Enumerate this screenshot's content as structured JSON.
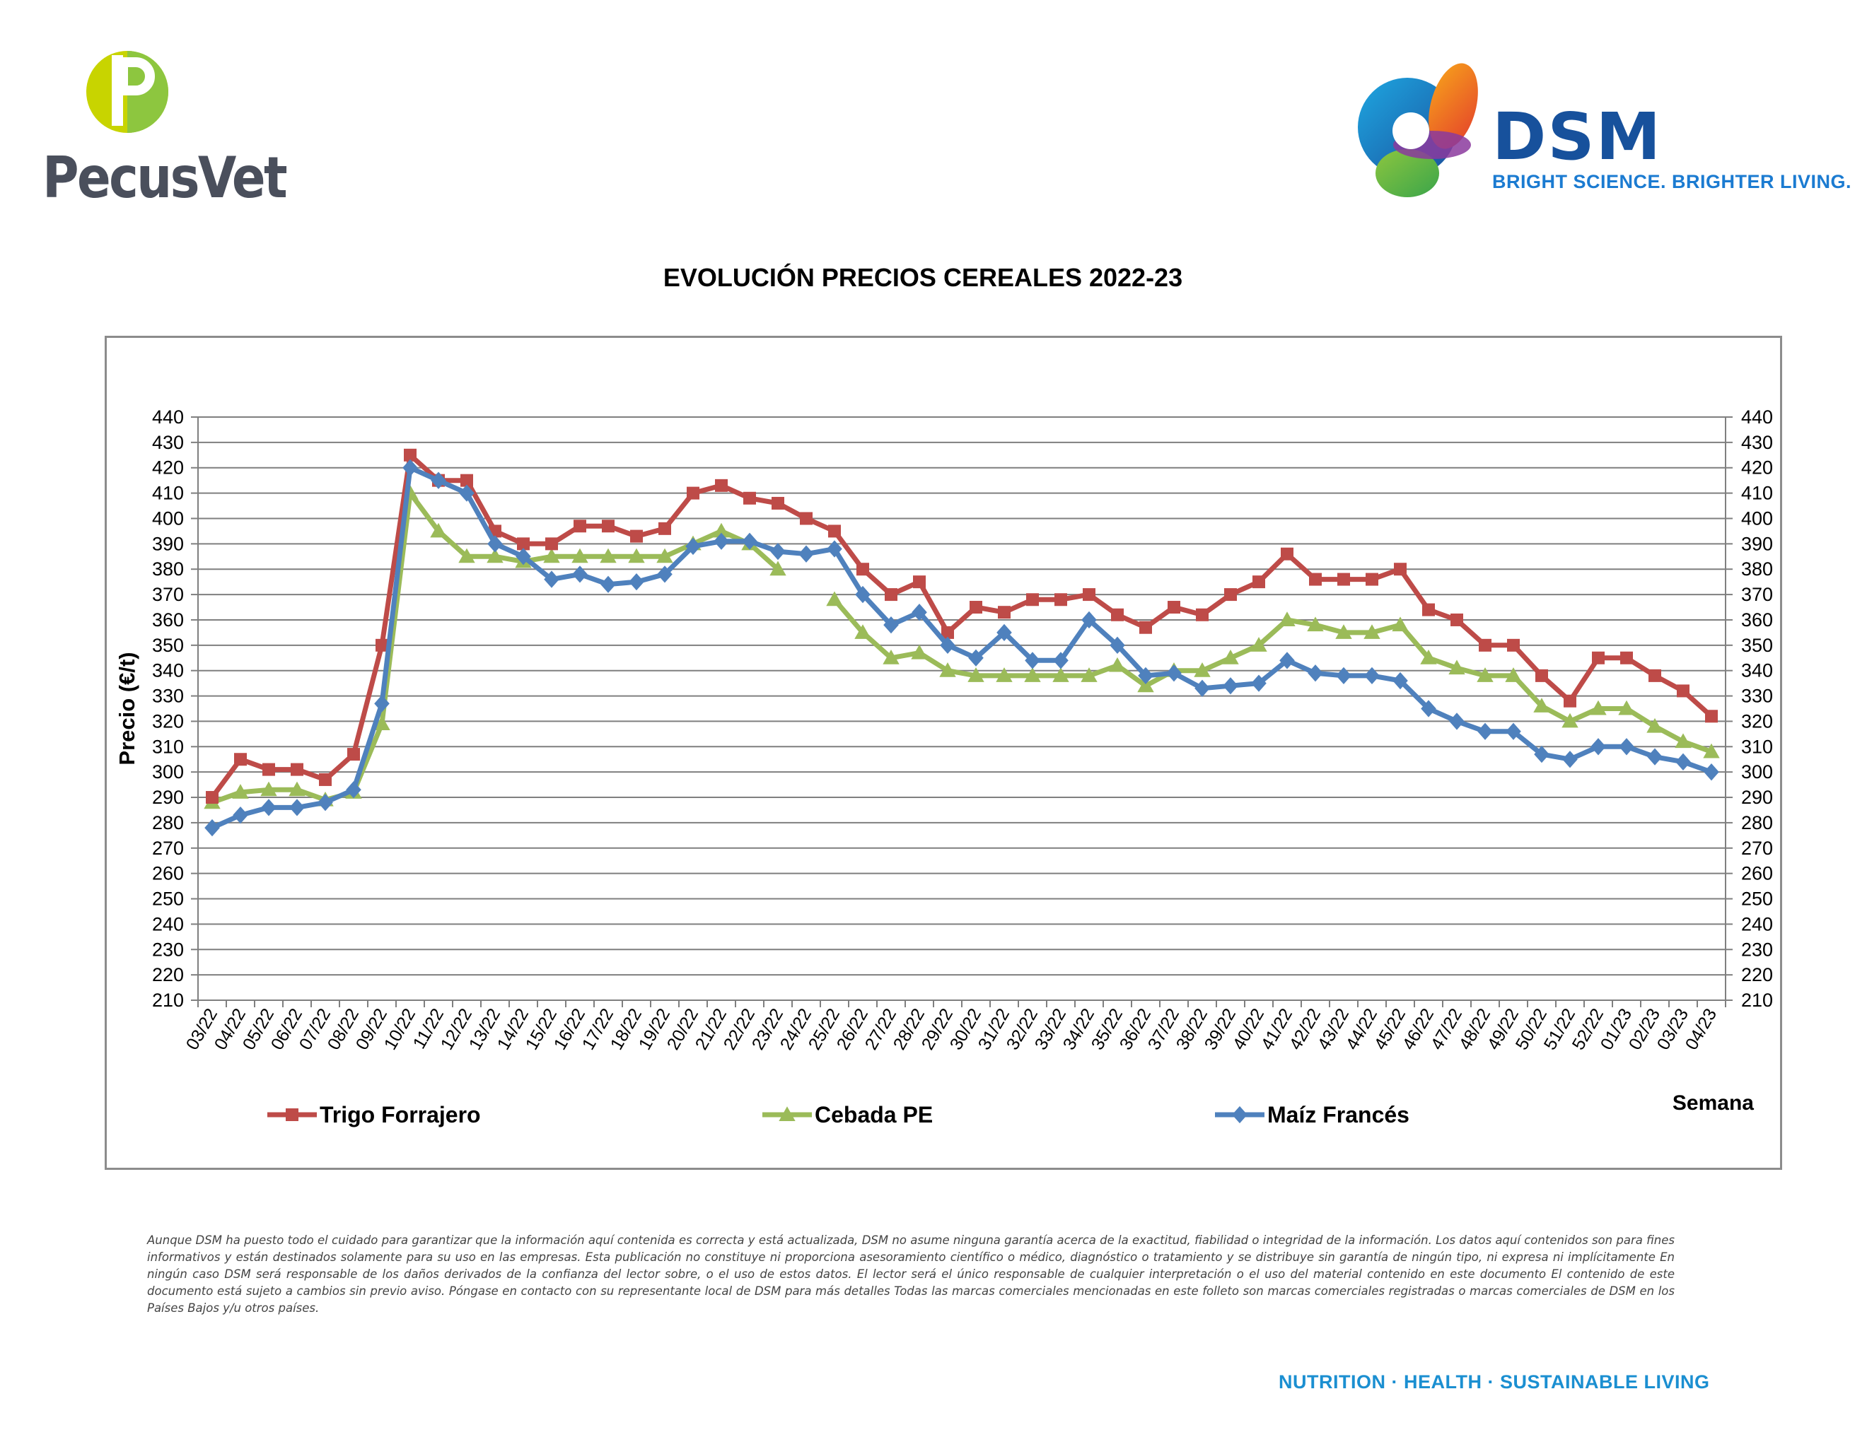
{
  "brand_left": {
    "name": "PecusVet",
    "colors": [
      "#c8d400",
      "#8dc63f"
    ]
  },
  "brand_right": {
    "name": "DSM",
    "tagline": "BRIGHT SCIENCE. BRIGHTER LIVING.",
    "color": "#17519c"
  },
  "footer": {
    "disclaimer": "Aunque DSM ha puesto todo el cuidado para garantizar que la información aquí contenida es correcta y está actualizada, DSM no asume ninguna garantía acerca de la exactitud, fiabilidad o integridad de la información. Los datos aquí contenidos son para fines informativos y están destinados solamente para su uso en las empresas. Esta publicación no constituye ni proporciona asesoramiento científico o médico, diagnóstico o tratamiento y se distribuye sin garantía de ningún tipo, ni expresa ni implícitamente En ningún caso DSM será responsable de los daños derivados de la confianza del lector sobre, o el uso de estos datos. El lector será el único responsable de cualquier interpretación o el uso del material contenido en este documento El contenido de este documento está sujeto a cambios sin previo aviso. Póngase en contacto con su representante local de DSM para más detalles Todas las marcas comerciales mencionadas en este folleto son marcas comerciales registradas o marcas comerciales de DSM en los Países Bajos y/u otros países.",
    "slogan": "NUTRITION · HEALTH · SUSTAINABLE LIVING"
  },
  "chart_data": {
    "type": "line",
    "title": "EVOLUCIÓN PRECIOS CEREALES 2022-23",
    "xlabel": "Semana",
    "ylabel": "Precio (€/t)",
    "ylim": [
      210,
      440
    ],
    "ytick_step": 10,
    "grid": true,
    "secondary_y_axis": true,
    "legend_position": "bottom",
    "categories": [
      "03/22",
      "04/22",
      "05/22",
      "06/22",
      "07/22",
      "08/22",
      "09/22",
      "10/22",
      "11/22",
      "12/22",
      "13/22",
      "14/22",
      "15/22",
      "16/22",
      "17/22",
      "18/22",
      "19/22",
      "20/22",
      "21/22",
      "22/22",
      "23/22",
      "24/22",
      "25/22",
      "26/22",
      "27/22",
      "28/22",
      "29/22",
      "30/22",
      "31/22",
      "32/22",
      "33/22",
      "34/22",
      "35/22",
      "36/22",
      "37/22",
      "38/22",
      "39/22",
      "40/22",
      "41/22",
      "42/22",
      "43/22",
      "44/22",
      "45/22",
      "46/22",
      "47/22",
      "48/22",
      "49/22",
      "50/22",
      "51/22",
      "52/22",
      "01/23",
      "02/23",
      "03/23",
      "04/23"
    ],
    "series": [
      {
        "name": "Trigo Forrajero",
        "color": "#be4b48",
        "marker": "square",
        "values": [
          290,
          305,
          301,
          301,
          297,
          307,
          350,
          425,
          415,
          415,
          395,
          390,
          390,
          397,
          397,
          393,
          396,
          410,
          413,
          408,
          406,
          400,
          395,
          380,
          370,
          375,
          355,
          365,
          363,
          368,
          368,
          370,
          362,
          357,
          365,
          362,
          370,
          375,
          386,
          376,
          376,
          376,
          380,
          364,
          360,
          350,
          350,
          338,
          328,
          345,
          345,
          338,
          332,
          322
        ]
      },
      {
        "name": "Cebada PE",
        "color": "#9bbb59",
        "marker": "triangle",
        "values": [
          288,
          292,
          293,
          293,
          289,
          292,
          319,
          410,
          395,
          385,
          385,
          383,
          385,
          385,
          385,
          385,
          385,
          390,
          395,
          390,
          380,
          null,
          368,
          355,
          345,
          347,
          340,
          338,
          338,
          338,
          338,
          338,
          342,
          334,
          340,
          340,
          345,
          350,
          360,
          358,
          355,
          355,
          358,
          345,
          341,
          338,
          338,
          326,
          320,
          325,
          325,
          318,
          312,
          308
        ]
      },
      {
        "name": "Maíz Francés",
        "color": "#4f81bd",
        "marker": "diamond",
        "values": [
          278,
          283,
          286,
          286,
          288,
          293,
          327,
          420,
          415,
          410,
          390,
          385,
          376,
          378,
          374,
          375,
          378,
          389,
          391,
          391,
          387,
          386,
          388,
          370,
          358,
          363,
          350,
          345,
          355,
          344,
          344,
          360,
          350,
          338,
          339,
          333,
          334,
          335,
          344,
          339,
          338,
          338,
          336,
          325,
          320,
          316,
          316,
          307,
          305,
          310,
          310,
          306,
          304,
          300
        ]
      }
    ]
  }
}
